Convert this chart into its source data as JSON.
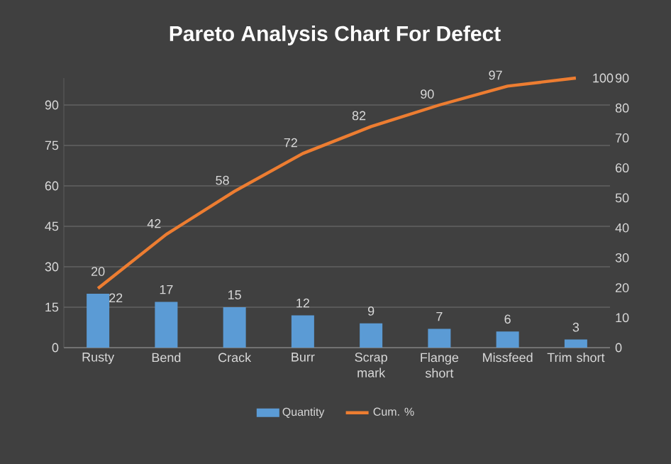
{
  "chart_data": {
    "type": "bar",
    "title": "Pareto Analysis Chart For Defect",
    "categories": [
      "Rusty",
      "Bend",
      "Crack",
      "Burr",
      "Scrap mark",
      "Flange short",
      "Missfeed",
      "Trim short"
    ],
    "series": [
      {
        "name": "Quantity",
        "color": "#5b9bd5",
        "values": [
          20,
          17,
          15,
          12,
          9,
          7,
          6,
          3
        ]
      },
      {
        "name": "Cum. %",
        "type": "line",
        "color": "#ed7d31",
        "values": [
          22,
          42,
          58,
          72,
          82,
          90,
          97,
          100
        ]
      }
    ],
    "ylim": [
      0,
      100
    ],
    "yticks": [
      0,
      15,
      30,
      45,
      60,
      75,
      90
    ],
    "y2lim": [
      0,
      90
    ],
    "y2ticks": [
      0,
      10,
      20,
      30,
      40,
      50,
      60,
      70,
      80,
      90
    ],
    "grid": "y",
    "legend": "bottom",
    "data_labels": true,
    "marker": "none",
    "line_style": "solid"
  }
}
